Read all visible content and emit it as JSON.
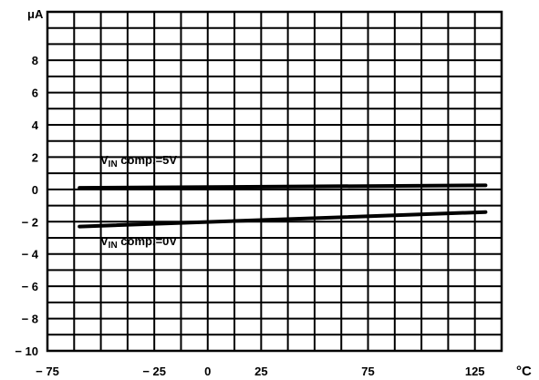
{
  "chart_data": {
    "type": "line",
    "y_unit": "μA",
    "x_unit": "°C",
    "xlim": [
      -75,
      137.5
    ],
    "ylim": [
      -10,
      11
    ],
    "x_ticks": [
      {
        "value": -75,
        "label": "− 75"
      },
      {
        "value": -25,
        "label": "− 25"
      },
      {
        "value": 0,
        "label": "0"
      },
      {
        "value": 25,
        "label": "25"
      },
      {
        "value": 75,
        "label": "75"
      },
      {
        "value": 125,
        "label": "125"
      }
    ],
    "y_ticks": [
      {
        "value": 8,
        "label": "8"
      },
      {
        "value": 6,
        "label": "6"
      },
      {
        "value": 4,
        "label": "4"
      },
      {
        "value": 2,
        "label": "2"
      },
      {
        "value": 0,
        "label": "0"
      },
      {
        "value": -2,
        "label": "− 2"
      },
      {
        "value": -4,
        "label": "− 4"
      },
      {
        "value": -6,
        "label": "− 6"
      },
      {
        "value": -8,
        "label": "− 8"
      },
      {
        "value": -10,
        "label": "− 10"
      }
    ],
    "x_grid_step": 12.5,
    "y_grid_step": 1,
    "grid": true,
    "series": [
      {
        "name": "VIN comp.=5V",
        "label_main": "V",
        "label_sub": "IN",
        "label_rest": " comp.=5V",
        "x": [
          -60,
          130
        ],
        "y": [
          0.1,
          0.25
        ]
      },
      {
        "name": "VIN comp.=0V",
        "label_main": "V",
        "label_sub": "IN",
        "label_rest": " comp.=0V",
        "x": [
          -60,
          130
        ],
        "y": [
          -2.3,
          -1.4
        ]
      }
    ]
  }
}
